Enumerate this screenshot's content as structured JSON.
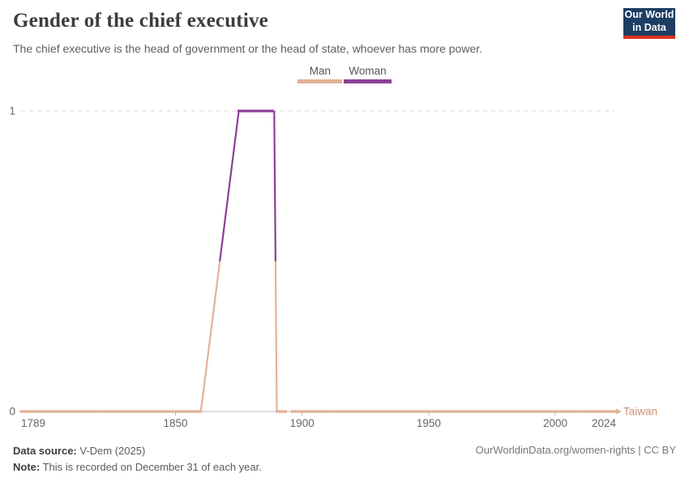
{
  "header": {
    "title": "Gender of the chief executive",
    "subtitle": "The chief executive is the head of government or the head of state, whoever has more power.",
    "logo_line1": "Our World",
    "logo_line2": "in Data",
    "logo_bg": "#1d3d63",
    "logo_stripe": "#e0311f"
  },
  "chart_data": {
    "type": "line",
    "title": "Gender of the chief executive",
    "entity": "Taiwan",
    "xlabel": "",
    "ylabel": "",
    "xlim": [
      1789,
      2024
    ],
    "ylim": [
      0,
      1
    ],
    "grid": "dashed line at y=1 only, solid axis line at y=0",
    "legend_position": "top-center",
    "x_ticks": [
      {
        "year": 1789,
        "label": "1789",
        "anchor": "start",
        "mark": false
      },
      {
        "year": 1850,
        "label": "1850",
        "anchor": "middle",
        "mark": true
      },
      {
        "year": 1900,
        "label": "1900",
        "anchor": "middle",
        "mark": true
      },
      {
        "year": 1950,
        "label": "1950",
        "anchor": "middle",
        "mark": true
      },
      {
        "year": 2000,
        "label": "2000",
        "anchor": "middle",
        "mark": true
      },
      {
        "year": 2024,
        "label": "2024",
        "anchor": "end",
        "mark": false
      }
    ],
    "y_ticks": [
      {
        "value": 0,
        "label": "0"
      },
      {
        "value": 1,
        "label": "1"
      }
    ],
    "colors": {
      "man": "#E2B297",
      "woman": "#8C3F96"
    },
    "entity_label_color": "#C99578",
    "legend": [
      {
        "label": "Man",
        "color_key": "man"
      },
      {
        "label": "Woman",
        "color_key": "woman"
      }
    ],
    "values_summary": "Man (value 0) from 1789 to 1860 and from 1890 to 2024 with a small data gap around 1895; Woman (value 1) from 1875 to 1889; straight interpolation across missing years 1861-1874; line colored by gender (switches at value 0.5).",
    "segments": [
      {
        "color_key": "man",
        "markers": true,
        "points": [
          [
            1789,
            0
          ],
          [
            1860,
            0
          ]
        ]
      },
      {
        "color_key": "man",
        "markers": false,
        "points": [
          [
            1860,
            0
          ],
          [
            1867.5,
            0.5
          ]
        ]
      },
      {
        "color_key": "woman",
        "markers": false,
        "points": [
          [
            1867.5,
            0.5
          ],
          [
            1875,
            1
          ]
        ]
      },
      {
        "color_key": "woman",
        "markers": true,
        "points": [
          [
            1875,
            1
          ],
          [
            1889,
            1
          ]
        ]
      },
      {
        "color_key": "woman",
        "markers": false,
        "points": [
          [
            1889,
            1
          ],
          [
            1889.5,
            0.5
          ]
        ]
      },
      {
        "color_key": "man",
        "markers": false,
        "points": [
          [
            1889.5,
            0.5
          ],
          [
            1890,
            0
          ]
        ]
      },
      {
        "color_key": "man",
        "markers": true,
        "points": [
          [
            1890,
            0
          ],
          [
            1894,
            0
          ]
        ]
      },
      {
        "color_key": "man",
        "markers": true,
        "points": [
          [
            1896,
            0
          ],
          [
            2024,
            0
          ]
        ]
      }
    ]
  },
  "footer": {
    "source_label": "Data source:",
    "source_value": " V-Dem (2025)",
    "note_label": "Note:",
    "note_value": " This is recorded on December 31 of each year.",
    "rights": "OurWorldinData.org/women-rights | CC BY"
  }
}
